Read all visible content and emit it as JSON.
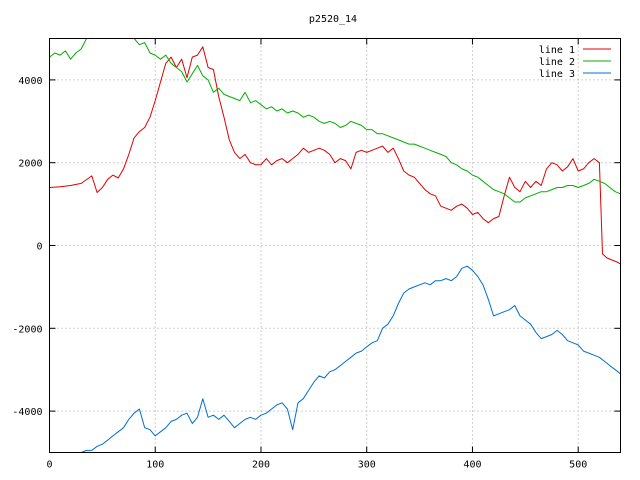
{
  "chart_data": {
    "type": "line",
    "title": "p2520_14",
    "xlabel": "",
    "ylabel": "",
    "xlim": [
      0,
      540
    ],
    "ylim": [
      -5000,
      5000
    ],
    "xticks": [
      0,
      100,
      200,
      300,
      400,
      500
    ],
    "yticks": [
      -4000,
      -2000,
      0,
      2000,
      4000
    ],
    "grid": true,
    "legend_position": "top-right",
    "series": [
      {
        "name": "line 1",
        "color": "#e00000",
        "points": [
          [
            0,
            1400
          ],
          [
            10,
            1420
          ],
          [
            20,
            1450
          ],
          [
            30,
            1500
          ],
          [
            40,
            1680
          ],
          [
            45,
            1280
          ],
          [
            50,
            1400
          ],
          [
            55,
            1600
          ],
          [
            60,
            1700
          ],
          [
            65,
            1630
          ],
          [
            70,
            1850
          ],
          [
            75,
            2200
          ],
          [
            80,
            2600
          ],
          [
            85,
            2750
          ],
          [
            90,
            2850
          ],
          [
            95,
            3100
          ],
          [
            100,
            3500
          ],
          [
            105,
            3950
          ],
          [
            110,
            4400
          ],
          [
            115,
            4550
          ],
          [
            120,
            4300
          ],
          [
            125,
            4500
          ],
          [
            130,
            4050
          ],
          [
            135,
            4550
          ],
          [
            140,
            4600
          ],
          [
            145,
            4800
          ],
          [
            150,
            4300
          ],
          [
            155,
            4250
          ],
          [
            160,
            3600
          ],
          [
            165,
            3100
          ],
          [
            170,
            2550
          ],
          [
            175,
            2250
          ],
          [
            180,
            2100
          ],
          [
            185,
            2200
          ],
          [
            190,
            2000
          ],
          [
            195,
            1950
          ],
          [
            200,
            1950
          ],
          [
            205,
            2100
          ],
          [
            210,
            1950
          ],
          [
            215,
            2050
          ],
          [
            220,
            2100
          ],
          [
            225,
            2000
          ],
          [
            230,
            2100
          ],
          [
            235,
            2200
          ],
          [
            240,
            2350
          ],
          [
            245,
            2250
          ],
          [
            250,
            2300
          ],
          [
            255,
            2350
          ],
          [
            260,
            2300
          ],
          [
            265,
            2200
          ],
          [
            270,
            2000
          ],
          [
            275,
            2100
          ],
          [
            280,
            2050
          ],
          [
            285,
            1850
          ],
          [
            290,
            2250
          ],
          [
            295,
            2300
          ],
          [
            300,
            2250
          ],
          [
            305,
            2300
          ],
          [
            310,
            2350
          ],
          [
            315,
            2400
          ],
          [
            320,
            2250
          ],
          [
            325,
            2350
          ],
          [
            330,
            2100
          ],
          [
            335,
            1800
          ],
          [
            340,
            1700
          ],
          [
            345,
            1650
          ],
          [
            350,
            1500
          ],
          [
            355,
            1350
          ],
          [
            360,
            1250
          ],
          [
            365,
            1200
          ],
          [
            370,
            950
          ],
          [
            375,
            900
          ],
          [
            380,
            850
          ],
          [
            385,
            950
          ],
          [
            390,
            1000
          ],
          [
            395,
            900
          ],
          [
            400,
            750
          ],
          [
            405,
            800
          ],
          [
            410,
            650
          ],
          [
            415,
            550
          ],
          [
            420,
            650
          ],
          [
            425,
            700
          ],
          [
            430,
            1200
          ],
          [
            435,
            1650
          ],
          [
            440,
            1400
          ],
          [
            445,
            1300
          ],
          [
            450,
            1550
          ],
          [
            455,
            1400
          ],
          [
            460,
            1550
          ],
          [
            465,
            1450
          ],
          [
            470,
            1850
          ],
          [
            475,
            2000
          ],
          [
            480,
            1950
          ],
          [
            485,
            1800
          ],
          [
            490,
            1900
          ],
          [
            495,
            2100
          ],
          [
            500,
            1800
          ],
          [
            505,
            1850
          ],
          [
            510,
            2000
          ],
          [
            515,
            2100
          ],
          [
            520,
            2000
          ],
          [
            523,
            -200
          ],
          [
            527,
            -300
          ],
          [
            532,
            -350
          ],
          [
            537,
            -400
          ],
          [
            540,
            -450
          ]
        ]
      },
      {
        "name": "line 2",
        "color": "#00b000",
        "points": [
          [
            0,
            4550
          ],
          [
            5,
            4650
          ],
          [
            10,
            4600
          ],
          [
            15,
            4700
          ],
          [
            20,
            4500
          ],
          [
            25,
            4650
          ],
          [
            30,
            4750
          ],
          [
            35,
            5000
          ],
          [
            80,
            5000
          ],
          [
            85,
            4850
          ],
          [
            90,
            4900
          ],
          [
            95,
            4650
          ],
          [
            100,
            4600
          ],
          [
            105,
            4500
          ],
          [
            110,
            4600
          ],
          [
            115,
            4400
          ],
          [
            120,
            4300
          ],
          [
            125,
            4200
          ],
          [
            130,
            3950
          ],
          [
            135,
            4150
          ],
          [
            140,
            4350
          ],
          [
            145,
            4100
          ],
          [
            150,
            4000
          ],
          [
            155,
            3700
          ],
          [
            160,
            3800
          ],
          [
            165,
            3650
          ],
          [
            170,
            3600
          ],
          [
            175,
            3550
          ],
          [
            180,
            3500
          ],
          [
            185,
            3700
          ],
          [
            190,
            3450
          ],
          [
            195,
            3500
          ],
          [
            200,
            3400
          ],
          [
            205,
            3300
          ],
          [
            210,
            3350
          ],
          [
            215,
            3250
          ],
          [
            220,
            3300
          ],
          [
            225,
            3200
          ],
          [
            230,
            3250
          ],
          [
            235,
            3200
          ],
          [
            240,
            3100
          ],
          [
            245,
            3150
          ],
          [
            250,
            3100
          ],
          [
            255,
            3000
          ],
          [
            260,
            2950
          ],
          [
            265,
            3000
          ],
          [
            270,
            2950
          ],
          [
            275,
            2850
          ],
          [
            280,
            2900
          ],
          [
            285,
            3000
          ],
          [
            290,
            2950
          ],
          [
            295,
            2900
          ],
          [
            300,
            2800
          ],
          [
            305,
            2800
          ],
          [
            310,
            2700
          ],
          [
            315,
            2700
          ],
          [
            320,
            2650
          ],
          [
            325,
            2600
          ],
          [
            330,
            2550
          ],
          [
            335,
            2500
          ],
          [
            340,
            2450
          ],
          [
            345,
            2450
          ],
          [
            350,
            2400
          ],
          [
            355,
            2350
          ],
          [
            360,
            2300
          ],
          [
            365,
            2250
          ],
          [
            370,
            2200
          ],
          [
            375,
            2150
          ],
          [
            380,
            2000
          ],
          [
            385,
            1950
          ],
          [
            390,
            1850
          ],
          [
            395,
            1800
          ],
          [
            400,
            1700
          ],
          [
            405,
            1650
          ],
          [
            410,
            1550
          ],
          [
            415,
            1450
          ],
          [
            420,
            1350
          ],
          [
            425,
            1300
          ],
          [
            430,
            1250
          ],
          [
            435,
            1150
          ],
          [
            440,
            1050
          ],
          [
            445,
            1050
          ],
          [
            450,
            1150
          ],
          [
            455,
            1200
          ],
          [
            460,
            1250
          ],
          [
            465,
            1300
          ],
          [
            470,
            1300
          ],
          [
            475,
            1350
          ],
          [
            480,
            1400
          ],
          [
            485,
            1400
          ],
          [
            490,
            1450
          ],
          [
            495,
            1450
          ],
          [
            500,
            1400
          ],
          [
            505,
            1450
          ],
          [
            510,
            1500
          ],
          [
            515,
            1600
          ],
          [
            520,
            1550
          ],
          [
            525,
            1500
          ],
          [
            530,
            1400
          ],
          [
            535,
            1300
          ],
          [
            540,
            1250
          ]
        ]
      },
      {
        "name": "line 3",
        "color": "#0070d0",
        "points": [
          [
            30,
            -5000
          ],
          [
            35,
            -4950
          ],
          [
            40,
            -4950
          ],
          [
            45,
            -4850
          ],
          [
            50,
            -4800
          ],
          [
            55,
            -4700
          ],
          [
            60,
            -4600
          ],
          [
            65,
            -4500
          ],
          [
            70,
            -4400
          ],
          [
            75,
            -4200
          ],
          [
            80,
            -4050
          ],
          [
            85,
            -3950
          ],
          [
            90,
            -4400
          ],
          [
            95,
            -4450
          ],
          [
            100,
            -4600
          ],
          [
            105,
            -4500
          ],
          [
            110,
            -4400
          ],
          [
            115,
            -4250
          ],
          [
            120,
            -4200
          ],
          [
            125,
            -4100
          ],
          [
            130,
            -4050
          ],
          [
            135,
            -4300
          ],
          [
            140,
            -4150
          ],
          [
            145,
            -3700
          ],
          [
            150,
            -4150
          ],
          [
            155,
            -4100
          ],
          [
            160,
            -4200
          ],
          [
            165,
            -4100
          ],
          [
            170,
            -4250
          ],
          [
            175,
            -4400
          ],
          [
            180,
            -4300
          ],
          [
            185,
            -4200
          ],
          [
            190,
            -4150
          ],
          [
            195,
            -4200
          ],
          [
            200,
            -4100
          ],
          [
            205,
            -4050
          ],
          [
            210,
            -3950
          ],
          [
            215,
            -3850
          ],
          [
            220,
            -3800
          ],
          [
            225,
            -3950
          ],
          [
            230,
            -4450
          ],
          [
            235,
            -3800
          ],
          [
            240,
            -3700
          ],
          [
            245,
            -3500
          ],
          [
            250,
            -3300
          ],
          [
            255,
            -3150
          ],
          [
            260,
            -3200
          ],
          [
            265,
            -3050
          ],
          [
            270,
            -3000
          ],
          [
            275,
            -2900
          ],
          [
            280,
            -2800
          ],
          [
            285,
            -2700
          ],
          [
            290,
            -2600
          ],
          [
            295,
            -2550
          ],
          [
            300,
            -2450
          ],
          [
            305,
            -2350
          ],
          [
            310,
            -2300
          ],
          [
            315,
            -2000
          ],
          [
            320,
            -1900
          ],
          [
            325,
            -1700
          ],
          [
            330,
            -1400
          ],
          [
            335,
            -1150
          ],
          [
            340,
            -1050
          ],
          [
            345,
            -1000
          ],
          [
            350,
            -950
          ],
          [
            355,
            -900
          ],
          [
            360,
            -950
          ],
          [
            365,
            -850
          ],
          [
            370,
            -850
          ],
          [
            375,
            -800
          ],
          [
            380,
            -850
          ],
          [
            385,
            -750
          ],
          [
            390,
            -550
          ],
          [
            395,
            -500
          ],
          [
            400,
            -600
          ],
          [
            405,
            -750
          ],
          [
            410,
            -950
          ],
          [
            415,
            -1300
          ],
          [
            420,
            -1700
          ],
          [
            425,
            -1650
          ],
          [
            430,
            -1600
          ],
          [
            435,
            -1550
          ],
          [
            440,
            -1450
          ],
          [
            445,
            -1700
          ],
          [
            450,
            -1800
          ],
          [
            455,
            -1900
          ],
          [
            460,
            -2100
          ],
          [
            465,
            -2250
          ],
          [
            470,
            -2200
          ],
          [
            475,
            -2150
          ],
          [
            480,
            -2050
          ],
          [
            485,
            -2150
          ],
          [
            490,
            -2300
          ],
          [
            495,
            -2350
          ],
          [
            500,
            -2400
          ],
          [
            505,
            -2550
          ],
          [
            510,
            -2600
          ],
          [
            515,
            -2650
          ],
          [
            520,
            -2700
          ],
          [
            525,
            -2800
          ],
          [
            530,
            -2900
          ],
          [
            535,
            -3000
          ],
          [
            540,
            -3100
          ]
        ]
      }
    ]
  }
}
